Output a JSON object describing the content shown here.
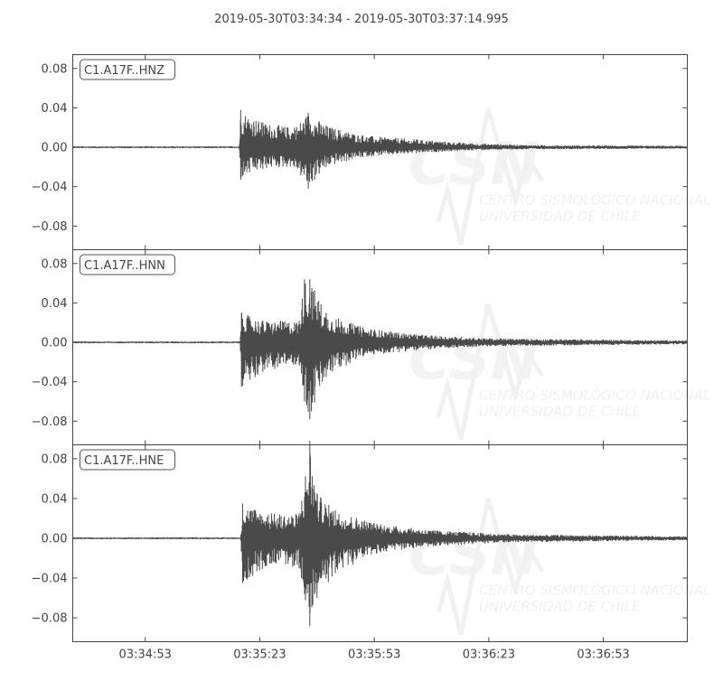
{
  "chart_data": {
    "type": "line",
    "title": "2019-05-30T03:34:34  -  2019-05-30T03:37:14.995",
    "start_time": "03:34:34",
    "end_time": "03:37:14.995",
    "xticks": [
      "03:34:53",
      "03:35:23",
      "03:35:53",
      "03:36:23",
      "03:36:53"
    ],
    "yticks": [
      0.08,
      0.04,
      0.0,
      -0.04,
      -0.08
    ],
    "ytick_labels": [
      "0.08",
      "0.04",
      "0.00",
      "−0.04",
      "−0.08"
    ],
    "ylim": [
      -0.104,
      0.094
    ],
    "grid": false,
    "line_color": "#4a4a4a",
    "watermark": {
      "logo": "CSN",
      "line1": "CENTRO SISMOLÓGICO NACIONAL",
      "line2": "UNIVERSIDAD DE CHILE"
    },
    "series": [
      {
        "name": "C1.A17F..HNZ",
        "envelope": [
          [
            "03:34:34",
            0.001,
            -0.001
          ],
          [
            "03:35:17.6",
            0.001,
            -0.001
          ],
          [
            "03:35:18.0",
            0.038,
            -0.033
          ],
          [
            "03:35:23.8",
            0.025,
            -0.022
          ],
          [
            "03:35:32.1",
            0.02,
            -0.02
          ],
          [
            "03:35:35.7",
            0.035,
            -0.042
          ],
          [
            "03:35:40.4",
            0.022,
            -0.02
          ],
          [
            "03:35:50",
            0.012,
            -0.01
          ],
          [
            "03:36:04",
            0.008,
            -0.006
          ],
          [
            "03:36:18.5",
            0.004,
            -0.003
          ],
          [
            "03:36:37.6",
            0.002,
            -0.002
          ],
          [
            "03:37:14.995",
            0.0015,
            -0.0015
          ]
        ]
      },
      {
        "name": "C1.A17F..HNN",
        "envelope": [
          [
            "03:34:34",
            0.001,
            -0.001
          ],
          [
            "03:35:17.8",
            0.001,
            -0.001
          ],
          [
            "03:35:18.2",
            0.03,
            -0.045
          ],
          [
            "03:35:23.8",
            0.022,
            -0.03
          ],
          [
            "03:35:33.3",
            0.022,
            -0.022
          ],
          [
            "03:35:34.7",
            0.064,
            -0.06
          ],
          [
            "03:35:36.1",
            0.064,
            -0.078
          ],
          [
            "03:35:40.4",
            0.03,
            -0.035
          ],
          [
            "03:35:50",
            0.015,
            -0.014
          ],
          [
            "03:36:04",
            0.008,
            -0.008
          ],
          [
            "03:36:23.3",
            0.004,
            -0.004
          ],
          [
            "03:37:14.995",
            0.002,
            -0.002
          ]
        ]
      },
      {
        "name": "C1.A17F..HNE",
        "envelope": [
          [
            "03:34:34",
            0.001,
            -0.001
          ],
          [
            "03:35:18.0",
            0.001,
            -0.001
          ],
          [
            "03:35:18.5",
            0.035,
            -0.045
          ],
          [
            "03:35:26.1",
            0.025,
            -0.025
          ],
          [
            "03:35:33.3",
            0.025,
            -0.03
          ],
          [
            "03:35:36.1",
            0.098,
            -0.088
          ],
          [
            "03:35:38.0",
            0.045,
            -0.06
          ],
          [
            "03:35:42.8",
            0.028,
            -0.035
          ],
          [
            "03:35:54.7",
            0.014,
            -0.014
          ],
          [
            "03:36:09",
            0.008,
            -0.008
          ],
          [
            "03:36:28",
            0.004,
            -0.004
          ],
          [
            "03:37:14.995",
            0.002,
            -0.002
          ]
        ]
      }
    ]
  }
}
